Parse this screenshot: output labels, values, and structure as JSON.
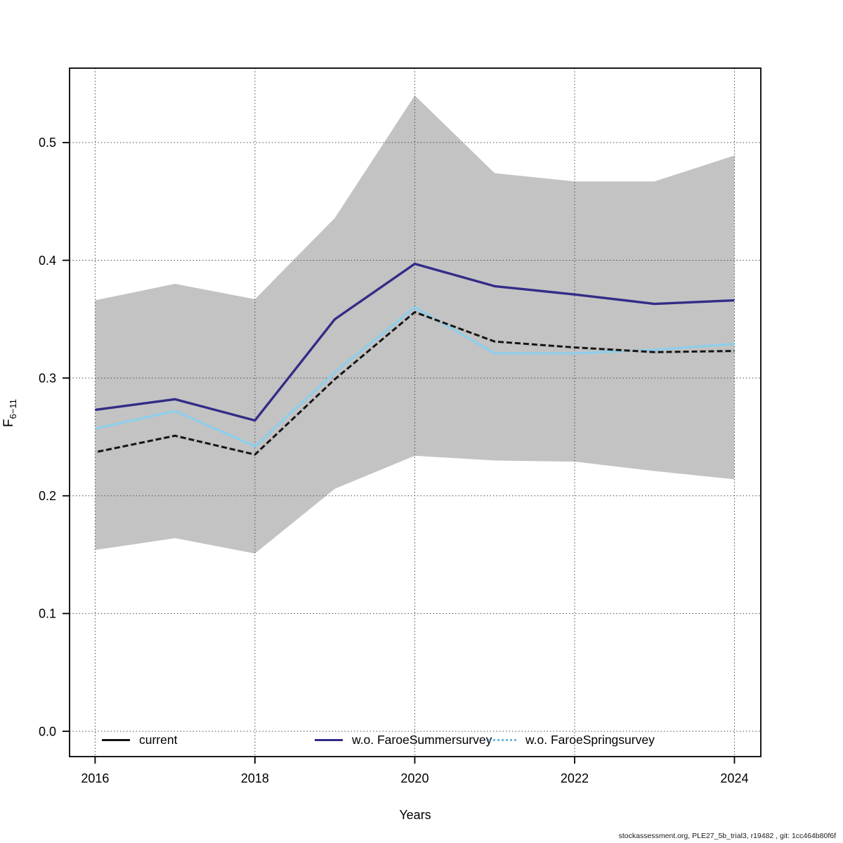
{
  "footer": {
    "text": "stockassessment.org, PLE27_5b_trial3, r19482 , git: 1cc464b80f6f"
  },
  "chart_data": {
    "type": "line",
    "title": "",
    "xlabel": "Years",
    "ylabel_base": "F",
    "ylabel_sub": "6−11",
    "x": [
      2016,
      2017,
      2018,
      2019,
      2020,
      2021,
      2022,
      2023,
      2024
    ],
    "x_ticks": [
      2016,
      2018,
      2020,
      2022,
      2024
    ],
    "x_tick_labels": [
      "2016",
      "2018",
      "2020",
      "2022",
      "2024"
    ],
    "y_ticks": [
      0.0,
      0.1,
      0.2,
      0.3,
      0.4,
      0.5
    ],
    "y_tick_labels": [
      "0.0",
      "0.1",
      "0.2",
      "0.3",
      "0.4",
      "0.5"
    ],
    "xlim": [
      2015.68,
      2024.33
    ],
    "ylim": [
      -0.0215,
      0.5632
    ],
    "grid": "dotted",
    "legend_position": "bottom-inside-horizontal",
    "band": {
      "label": "confidence-band-current",
      "color": "#c3c3c3",
      "upper": [
        0.366,
        0.38,
        0.367,
        0.436,
        0.54,
        0.474,
        0.467,
        0.467,
        0.489
      ],
      "lower": [
        0.154,
        0.164,
        0.151,
        0.206,
        0.234,
        0.23,
        0.229,
        0.221,
        0.214
      ]
    },
    "series": [
      {
        "name": "current",
        "color": "#141414",
        "style": "solid-with-gray-dash-overlay",
        "values": [
          0.237,
          0.251,
          0.235,
          0.299,
          0.356,
          0.331,
          0.326,
          0.322,
          0.323
        ]
      },
      {
        "name": "w.o. FaroeSummersurvey",
        "color": "#332c87",
        "style": "solid",
        "values": [
          0.273,
          0.282,
          0.264,
          0.35,
          0.397,
          0.378,
          0.371,
          0.363,
          0.366
        ]
      },
      {
        "name": "w.o. FaroeSpringsurvey",
        "color": "#8CCFEC",
        "style": "dotted",
        "values": [
          0.257,
          0.272,
          0.242,
          0.305,
          0.36,
          0.321,
          0.321,
          0.324,
          0.329
        ]
      }
    ],
    "colors": {
      "grid": "#4a4a4a",
      "axis": "#000000",
      "band": "#c3c3c3"
    }
  }
}
